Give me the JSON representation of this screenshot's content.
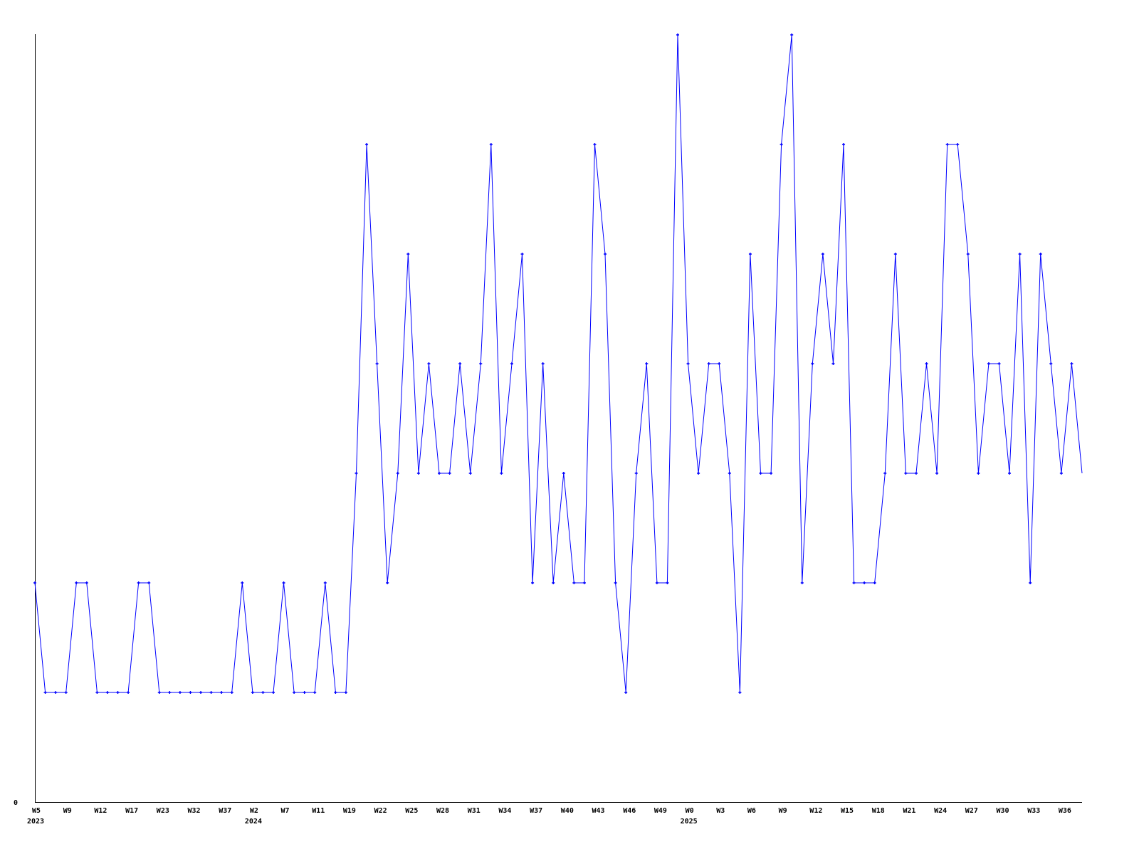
{
  "chart_data": {
    "type": "line",
    "title": "",
    "xlabel": "",
    "ylabel": "",
    "ylim": [
      0,
      7
    ],
    "y_tick_labels": [
      "0"
    ],
    "grid": false,
    "line_color": "#0000ff",
    "axis_color": "#000000",
    "x_tick_labels": [
      "W5",
      "W9",
      "W12",
      "W17",
      "W23",
      "W32",
      "W37",
      "W2",
      "W7",
      "W11",
      "W19",
      "W22",
      "W25",
      "W28",
      "W31",
      "W34",
      "W37",
      "W40",
      "W43",
      "W46",
      "W49",
      "W0",
      "W3",
      "W6",
      "W9",
      "W12",
      "W15",
      "W18",
      "W21",
      "W24",
      "W27",
      "W30",
      "W33",
      "W36"
    ],
    "year_labels": [
      {
        "label": "2023",
        "at_tick": 0
      },
      {
        "label": "2024",
        "at_tick": 7
      },
      {
        "label": "2025",
        "at_tick": 21
      }
    ],
    "series": [
      {
        "values": [
          2,
          1,
          1,
          1,
          2,
          2,
          1,
          1,
          1,
          1,
          2,
          2,
          1,
          1,
          1,
          1,
          1,
          1,
          1,
          1,
          2,
          1,
          1,
          1,
          2,
          1,
          1,
          1,
          2,
          1,
          1,
          3,
          6,
          4,
          2,
          3,
          5,
          3,
          4,
          3,
          3,
          4,
          3,
          4,
          6,
          3,
          4,
          5,
          2,
          4,
          2,
          3,
          2,
          2,
          6,
          5,
          2,
          1,
          3,
          4,
          2,
          2,
          7,
          4,
          3,
          4,
          4,
          3,
          1,
          5,
          3,
          3,
          6,
          7,
          2,
          4,
          5,
          4,
          6,
          2,
          2,
          2,
          3,
          5,
          3,
          3,
          4,
          3,
          6,
          6,
          5,
          3,
          4,
          4,
          3,
          5,
          2,
          5,
          4,
          3,
          4,
          3
        ]
      }
    ]
  }
}
